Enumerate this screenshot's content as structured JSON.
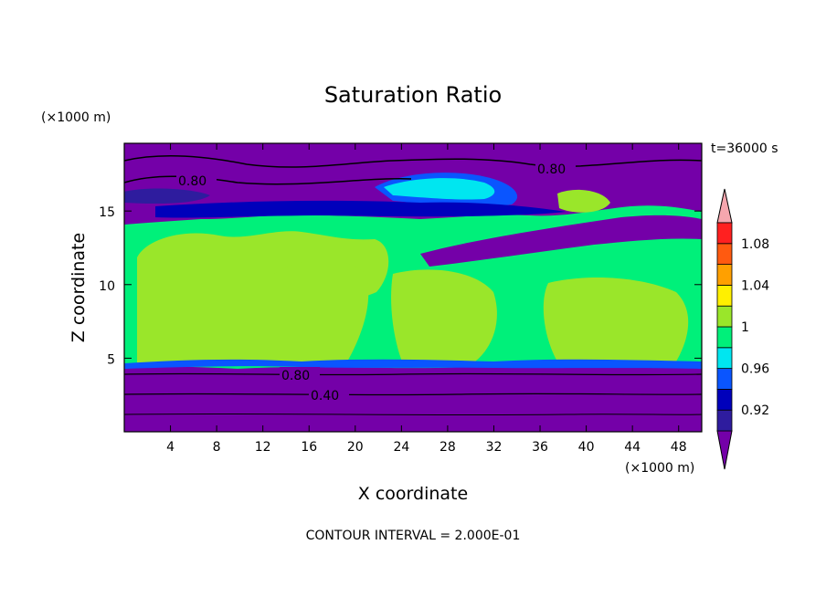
{
  "chart_data": {
    "type": "heatmap",
    "title": "Saturation Ratio",
    "xlabel": "X coordinate",
    "ylabel": "Z coordinate",
    "x_unit": "(×1000 m)",
    "y_unit": "(×1000 m)",
    "time_label": "t=36000 s",
    "footnote": "CONTOUR INTERVAL = 2.000E-01",
    "xlim": [
      0,
      50
    ],
    "ylim": [
      0,
      19.6
    ],
    "x_ticks": [
      4,
      8,
      12,
      16,
      20,
      24,
      28,
      32,
      36,
      40,
      44,
      48
    ],
    "y_ticks": [
      5,
      10,
      15
    ],
    "colorbar": {
      "labels": [
        "0.92",
        "0.96",
        "1",
        "1.04",
        "1.08"
      ],
      "levels": [
        0.9,
        0.92,
        0.94,
        0.96,
        0.98,
        1.0,
        1.02,
        1.04,
        1.06,
        1.08,
        1.1
      ],
      "colors": [
        "#7400a8",
        "#2e1c9e",
        "#0000bb",
        "#0a55ff",
        "#00e6f0",
        "#00f07a",
        "#9ae62a",
        "#fff000",
        "#ffa000",
        "#ff5a10",
        "#ff2020",
        "#f6a6ae"
      ]
    },
    "contour_labels": [
      "0.80",
      "0.80",
      "0.80",
      "0.40"
    ],
    "regions": [
      {
        "zmin": 0,
        "zmax": 4.3,
        "value": "below 0.90"
      },
      {
        "zmin": 4.3,
        "zmax": 14.5,
        "value": "0.98-1.02, mostly 1.00-1.02"
      },
      {
        "zmin": 14.5,
        "zmax": 19.6,
        "value": "below 0.90 with 0.92-0.98 patches"
      }
    ]
  }
}
